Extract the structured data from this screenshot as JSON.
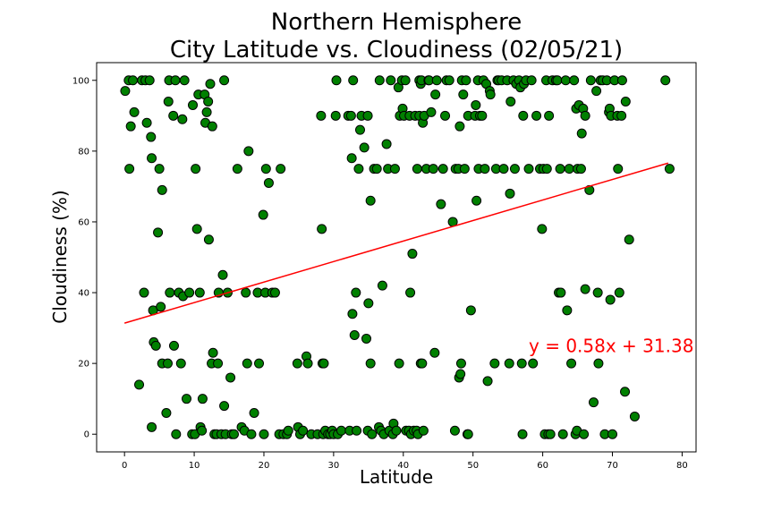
{
  "chart_data": {
    "type": "scatter",
    "title": "Northern Hemisphere",
    "subtitle": "City Latitude vs. Cloudiness (02/05/21)",
    "xlabel": "Latitude",
    "ylabel": "Cloudiness (%)",
    "xlim": [
      -4,
      82
    ],
    "ylim": [
      -5,
      105
    ],
    "xticks": [
      0,
      10,
      20,
      30,
      40,
      50,
      60,
      70,
      80
    ],
    "yticks": [
      0,
      20,
      40,
      60,
      80,
      100
    ],
    "grid": false,
    "colors": {
      "point_fill": "#008000",
      "point_edge": "#000000",
      "line": "#ff0000",
      "annotation": "#ff0000"
    },
    "regression": {
      "slope": 0.58,
      "intercept": 31.38,
      "x_range": [
        0,
        78
      ],
      "label": "y = 0.58x + 31.38"
    },
    "annotation_position": [
      58,
      25
    ],
    "series": [
      {
        "points": [
          [
            0.1,
            97
          ],
          [
            0.6,
            100
          ],
          [
            0.7,
            75
          ],
          [
            0.9,
            87
          ],
          [
            1.2,
            100
          ],
          [
            1.4,
            91
          ],
          [
            2.1,
            14
          ],
          [
            2.5,
            100
          ],
          [
            2.8,
            40
          ],
          [
            3.0,
            100
          ],
          [
            3.2,
            88
          ],
          [
            3.6,
            100
          ],
          [
            3.8,
            84
          ],
          [
            3.9,
            78
          ],
          [
            3.9,
            2
          ],
          [
            4.1,
            35
          ],
          [
            4.2,
            26
          ],
          [
            4.5,
            25
          ],
          [
            4.8,
            57
          ],
          [
            5.0,
            75
          ],
          [
            5.2,
            36
          ],
          [
            5.4,
            69
          ],
          [
            5.4,
            20
          ],
          [
            6.0,
            6
          ],
          [
            6.2,
            20
          ],
          [
            6.3,
            94
          ],
          [
            6.4,
            100
          ],
          [
            6.5,
            40
          ],
          [
            7.0,
            90
          ],
          [
            7.1,
            25
          ],
          [
            7.3,
            100
          ],
          [
            7.4,
            0
          ],
          [
            7.8,
            40
          ],
          [
            8.1,
            20
          ],
          [
            8.3,
            89
          ],
          [
            8.4,
            39
          ],
          [
            8.6,
            100
          ],
          [
            8.9,
            10
          ],
          [
            9.3,
            40
          ],
          [
            9.7,
            0
          ],
          [
            9.8,
            93
          ],
          [
            10.1,
            0
          ],
          [
            10.2,
            75
          ],
          [
            10.4,
            58
          ],
          [
            10.6,
            96
          ],
          [
            10.8,
            40
          ],
          [
            10.9,
            2
          ],
          [
            11.1,
            1
          ],
          [
            11.2,
            10
          ],
          [
            11.5,
            96
          ],
          [
            11.6,
            88
          ],
          [
            11.8,
            91
          ],
          [
            12.0,
            94
          ],
          [
            12.1,
            55
          ],
          [
            12.3,
            99
          ],
          [
            12.5,
            20
          ],
          [
            12.6,
            87
          ],
          [
            12.7,
            23
          ],
          [
            12.9,
            0
          ],
          [
            13.2,
            0
          ],
          [
            13.4,
            20
          ],
          [
            13.5,
            40
          ],
          [
            13.9,
            0
          ],
          [
            14.1,
            45
          ],
          [
            14.3,
            8
          ],
          [
            14.3,
            100
          ],
          [
            14.5,
            0
          ],
          [
            14.8,
            40
          ],
          [
            15.2,
            16
          ],
          [
            15.4,
            0
          ],
          [
            15.7,
            0
          ],
          [
            16.2,
            75
          ],
          [
            16.8,
            2
          ],
          [
            17.2,
            1
          ],
          [
            17.4,
            40
          ],
          [
            17.6,
            20
          ],
          [
            17.8,
            80
          ],
          [
            18.2,
            0
          ],
          [
            18.6,
            6
          ],
          [
            19.1,
            40
          ],
          [
            19.3,
            20
          ],
          [
            19.9,
            62
          ],
          [
            20.0,
            0
          ],
          [
            20.2,
            40
          ],
          [
            20.3,
            75
          ],
          [
            20.7,
            71
          ],
          [
            21.2,
            40
          ],
          [
            21.6,
            40
          ],
          [
            22.2,
            0
          ],
          [
            22.4,
            75
          ],
          [
            22.8,
            0
          ],
          [
            23.3,
            0
          ],
          [
            23.5,
            1
          ],
          [
            24.8,
            20
          ],
          [
            24.9,
            2
          ],
          [
            25.2,
            0
          ],
          [
            25.6,
            1
          ],
          [
            26.1,
            22
          ],
          [
            26.3,
            20
          ],
          [
            26.8,
            0
          ],
          [
            27.7,
            0
          ],
          [
            28.2,
            90
          ],
          [
            28.3,
            58
          ],
          [
            28.4,
            20
          ],
          [
            28.5,
            0
          ],
          [
            28.6,
            20
          ],
          [
            28.8,
            1
          ],
          [
            29.2,
            0
          ],
          [
            29.5,
            0
          ],
          [
            29.8,
            1
          ],
          [
            30.0,
            0
          ],
          [
            30.3,
            90
          ],
          [
            30.4,
            100
          ],
          [
            30.6,
            0
          ],
          [
            31.1,
            1
          ],
          [
            32.1,
            90
          ],
          [
            32.3,
            1
          ],
          [
            32.5,
            90
          ],
          [
            32.6,
            78
          ],
          [
            32.7,
            34
          ],
          [
            32.8,
            100
          ],
          [
            33.0,
            28
          ],
          [
            33.2,
            40
          ],
          [
            33.3,
            1
          ],
          [
            33.6,
            75
          ],
          [
            33.8,
            86
          ],
          [
            34.0,
            90
          ],
          [
            34.4,
            81
          ],
          [
            34.7,
            27
          ],
          [
            34.9,
            1
          ],
          [
            34.9,
            90
          ],
          [
            35.0,
            37
          ],
          [
            35.3,
            20
          ],
          [
            35.3,
            66
          ],
          [
            35.5,
            0
          ],
          [
            35.8,
            75
          ],
          [
            36.2,
            75
          ],
          [
            36.5,
            2
          ],
          [
            36.6,
            100
          ],
          [
            36.8,
            1
          ],
          [
            37.0,
            42
          ],
          [
            37.2,
            0
          ],
          [
            37.6,
            82
          ],
          [
            37.8,
            75
          ],
          [
            38.0,
            1
          ],
          [
            38.2,
            100
          ],
          [
            38.5,
            0
          ],
          [
            38.6,
            3
          ],
          [
            38.8,
            75
          ],
          [
            39.0,
            1
          ],
          [
            39.3,
            98
          ],
          [
            39.4,
            20
          ],
          [
            39.5,
            90
          ],
          [
            39.8,
            100
          ],
          [
            39.9,
            92
          ],
          [
            40.1,
            90
          ],
          [
            40.3,
            100
          ],
          [
            40.4,
            1
          ],
          [
            40.8,
            1
          ],
          [
            40.9,
            90
          ],
          [
            41.0,
            40
          ],
          [
            41.1,
            0
          ],
          [
            41.3,
            51
          ],
          [
            41.5,
            1
          ],
          [
            41.7,
            90
          ],
          [
            41.9,
            1
          ],
          [
            42.0,
            75
          ],
          [
            42.1,
            0
          ],
          [
            42.3,
            90
          ],
          [
            42.3,
            100
          ],
          [
            42.5,
            99
          ],
          [
            42.5,
            20
          ],
          [
            42.6,
            100
          ],
          [
            42.7,
            20
          ],
          [
            42.8,
            88
          ],
          [
            42.9,
            1
          ],
          [
            43.0,
            90
          ],
          [
            43.3,
            75
          ],
          [
            43.6,
            100
          ],
          [
            43.7,
            100
          ],
          [
            44.0,
            91
          ],
          [
            44.3,
            75
          ],
          [
            44.5,
            23
          ],
          [
            44.6,
            96
          ],
          [
            44.8,
            100
          ],
          [
            45.4,
            65
          ],
          [
            45.7,
            75
          ],
          [
            46.0,
            90
          ],
          [
            46.2,
            100
          ],
          [
            46.6,
            100
          ],
          [
            47.1,
            60
          ],
          [
            47.4,
            1
          ],
          [
            47.5,
            75
          ],
          [
            47.9,
            75
          ],
          [
            48.0,
            16
          ],
          [
            48.1,
            87
          ],
          [
            48.2,
            17
          ],
          [
            48.3,
            20
          ],
          [
            48.4,
            100
          ],
          [
            48.6,
            96
          ],
          [
            48.8,
            75
          ],
          [
            49.0,
            100
          ],
          [
            49.2,
            0
          ],
          [
            49.3,
            0
          ],
          [
            49.3,
            90
          ],
          [
            49.7,
            35
          ],
          [
            50.3,
            90
          ],
          [
            50.4,
            93
          ],
          [
            50.5,
            66
          ],
          [
            50.7,
            100
          ],
          [
            50.8,
            75
          ],
          [
            51.0,
            90
          ],
          [
            51.3,
            90
          ],
          [
            51.5,
            100
          ],
          [
            51.7,
            75
          ],
          [
            51.9,
            99
          ],
          [
            52.1,
            15
          ],
          [
            52.4,
            97
          ],
          [
            52.5,
            96
          ],
          [
            53.1,
            20
          ],
          [
            53.3,
            75
          ],
          [
            53.5,
            100
          ],
          [
            53.7,
            100
          ],
          [
            54.1,
            100
          ],
          [
            54.4,
            75
          ],
          [
            54.9,
            100
          ],
          [
            55.2,
            20
          ],
          [
            55.3,
            68
          ],
          [
            55.4,
            94
          ],
          [
            55.8,
            100
          ],
          [
            56.0,
            75
          ],
          [
            56.2,
            99
          ],
          [
            56.6,
            100
          ],
          [
            56.8,
            98
          ],
          [
            57.0,
            20
          ],
          [
            57.1,
            0
          ],
          [
            57.2,
            90
          ],
          [
            57.3,
            99
          ],
          [
            57.6,
            100
          ],
          [
            58.0,
            75
          ],
          [
            58.4,
            100
          ],
          [
            58.6,
            20
          ],
          [
            59.1,
            90
          ],
          [
            59.6,
            75
          ],
          [
            59.9,
            58
          ],
          [
            60.1,
            75
          ],
          [
            60.3,
            0
          ],
          [
            60.5,
            100
          ],
          [
            60.6,
            75
          ],
          [
            60.8,
            0
          ],
          [
            60.9,
            90
          ],
          [
            61.1,
            0
          ],
          [
            61.4,
            100
          ],
          [
            61.9,
            100
          ],
          [
            62.1,
            100
          ],
          [
            62.3,
            40
          ],
          [
            62.5,
            75
          ],
          [
            62.6,
            40
          ],
          [
            62.9,
            0
          ],
          [
            63.3,
            100
          ],
          [
            63.5,
            35
          ],
          [
            63.8,
            75
          ],
          [
            64.1,
            20
          ],
          [
            64.5,
            100
          ],
          [
            64.7,
            0
          ],
          [
            64.8,
            92
          ],
          [
            64.9,
            1
          ],
          [
            65.0,
            75
          ],
          [
            65.2,
            93
          ],
          [
            65.5,
            75
          ],
          [
            65.6,
            85
          ],
          [
            65.8,
            92
          ],
          [
            65.9,
            0
          ],
          [
            66.1,
            41
          ],
          [
            66.1,
            90
          ],
          [
            66.7,
            69
          ],
          [
            66.9,
            100
          ],
          [
            67.3,
            9
          ],
          [
            67.7,
            97
          ],
          [
            67.9,
            40
          ],
          [
            68.0,
            20
          ],
          [
            68.3,
            100
          ],
          [
            68.6,
            100
          ],
          [
            68.9,
            0
          ],
          [
            69.2,
            100
          ],
          [
            69.5,
            91
          ],
          [
            69.6,
            92
          ],
          [
            69.7,
            38
          ],
          [
            69.8,
            90
          ],
          [
            70.0,
            0
          ],
          [
            70.3,
            100
          ],
          [
            70.7,
            90
          ],
          [
            70.8,
            75
          ],
          [
            71.0,
            40
          ],
          [
            71.3,
            90
          ],
          [
            71.4,
            100
          ],
          [
            71.8,
            12
          ],
          [
            71.9,
            94
          ],
          [
            72.4,
            55
          ],
          [
            73.2,
            5
          ],
          [
            77.6,
            100
          ],
          [
            78.2,
            75
          ]
        ]
      }
    ]
  }
}
